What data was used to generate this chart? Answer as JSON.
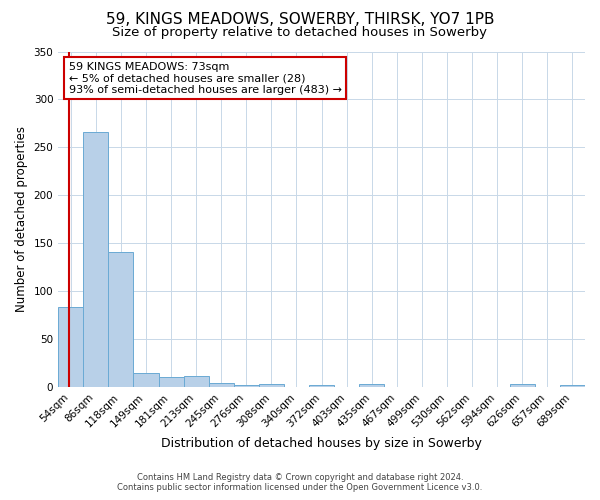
{
  "title": "59, KINGS MEADOWS, SOWERBY, THIRSK, YO7 1PB",
  "subtitle": "Size of property relative to detached houses in Sowerby",
  "xlabel": "Distribution of detached houses by size in Sowerby",
  "ylabel": "Number of detached properties",
  "bar_labels": [
    "54sqm",
    "86sqm",
    "118sqm",
    "149sqm",
    "181sqm",
    "213sqm",
    "245sqm",
    "276sqm",
    "308sqm",
    "340sqm",
    "372sqm",
    "403sqm",
    "435sqm",
    "467sqm",
    "499sqm",
    "530sqm",
    "562sqm",
    "594sqm",
    "626sqm",
    "657sqm",
    "689sqm"
  ],
  "bar_values": [
    83,
    266,
    141,
    15,
    10,
    11,
    4,
    2,
    3,
    0,
    2,
    0,
    3,
    0,
    0,
    0,
    0,
    0,
    3,
    0,
    2
  ],
  "bar_color": "#b8d0e8",
  "bar_edge_color": "#6aaad4",
  "ylim": [
    0,
    350
  ],
  "yticks": [
    0,
    50,
    100,
    150,
    200,
    250,
    300,
    350
  ],
  "annotation_title": "59 KINGS MEADOWS: 73sqm",
  "annotation_line1": "← 5% of detached houses are smaller (28)",
  "annotation_line2": "93% of semi-detached houses are larger (483) →",
  "annotation_box_color": "#ffffff",
  "annotation_border_color": "#cc0000",
  "red_line_color": "#cc0000",
  "footnote1": "Contains HM Land Registry data © Crown copyright and database right 2024.",
  "footnote2": "Contains public sector information licensed under the Open Government Licence v3.0.",
  "background_color": "#ffffff",
  "grid_color": "#c8d8e8",
  "title_fontsize": 11,
  "subtitle_fontsize": 9.5,
  "xlabel_fontsize": 9,
  "ylabel_fontsize": 8.5,
  "tick_fontsize": 7.5,
  "footnote_fontsize": 6,
  "ann_fontsize": 8
}
